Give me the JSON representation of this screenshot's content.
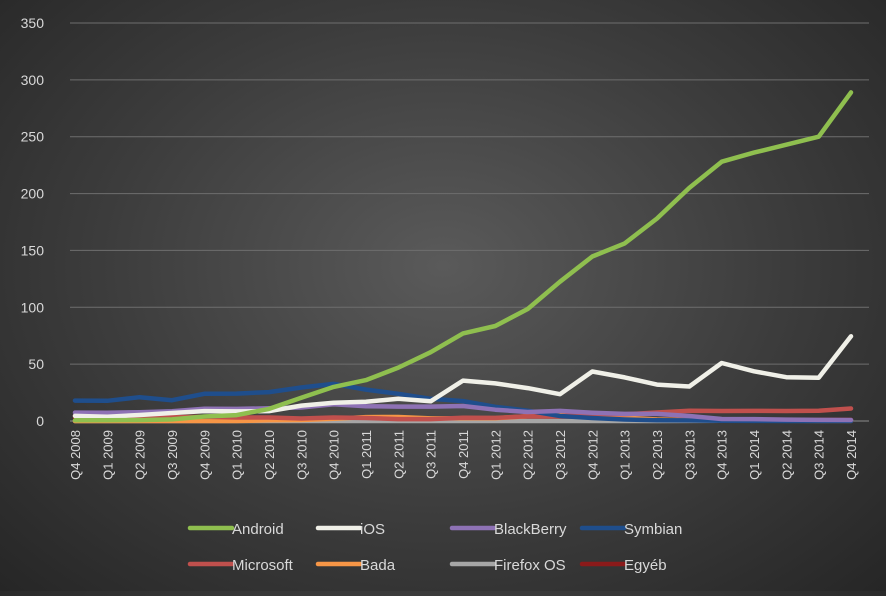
{
  "chart_data": {
    "type": "line",
    "title": "",
    "xlabel": "",
    "ylabel": "",
    "ylim": [
      0,
      350
    ],
    "yticks": [
      0,
      50,
      100,
      150,
      200,
      250,
      300,
      350
    ],
    "grid": true,
    "legend_position": "bottom",
    "x": [
      "Q4 2008",
      "Q1 2009",
      "Q2 2009",
      "Q3 2009",
      "Q4 2009",
      "Q1 2010",
      "Q2 2010",
      "Q3 2010",
      "Q4 2010",
      "Q1 2011",
      "Q2 2011",
      "Q3 2011",
      "Q4 2011",
      "Q1 2012",
      "Q2 2012",
      "Q3 2012",
      "Q4 2012",
      "Q1 2013",
      "Q2 2013",
      "Q3 2013",
      "Q4 2013",
      "Q1 2014",
      "Q2 2014",
      "Q3 2014",
      "Q4 2014"
    ],
    "series": [
      {
        "name": "Android",
        "color": "#8fbf4f",
        "values": [
          0.6,
          0.6,
          0.8,
          1.4,
          4.0,
          5.2,
          10.6,
          20.5,
          30.0,
          36.0,
          47.0,
          60.5,
          77.0,
          83.5,
          98.5,
          122.5,
          144.7,
          156.2,
          178.1,
          205.0,
          228.0,
          236.0,
          243.0,
          250.0,
          289.0
        ]
      },
      {
        "name": "iOS",
        "color": "#f0f0e8",
        "values": [
          4.5,
          3.8,
          5.3,
          7.0,
          8.7,
          8.4,
          8.7,
          13.5,
          16.0,
          16.9,
          19.6,
          17.3,
          35.5,
          33.1,
          28.9,
          23.6,
          43.5,
          38.3,
          32.0,
          30.3,
          51.0,
          43.7,
          38.5,
          38.0,
          74.5
        ]
      },
      {
        "name": "BlackBerry",
        "color": "#8e72b5",
        "values": [
          7.4,
          7.2,
          7.7,
          8.5,
          10.7,
          10.6,
          11.2,
          11.9,
          14.8,
          13.0,
          12.7,
          12.7,
          13.2,
          9.9,
          7.9,
          8.9,
          7.3,
          6.2,
          6.2,
          4.4,
          1.8,
          1.7,
          1.2,
          1.0,
          0.9
        ]
      },
      {
        "name": "Symbian",
        "color": "#1f4e8c",
        "values": [
          17.9,
          17.8,
          20.9,
          18.3,
          23.9,
          24.1,
          25.4,
          29.5,
          32.6,
          27.6,
          23.9,
          19.5,
          17.5,
          12.5,
          9.1,
          4.4,
          2.6,
          1.3,
          0.6,
          0.5,
          0.3,
          0.1,
          0.0,
          0.0,
          0.0
        ]
      },
      {
        "name": "Microsoft",
        "color": "#c0504d",
        "values": [
          4.7,
          3.7,
          3.8,
          3.3,
          3.7,
          3.1,
          3.1,
          2.2,
          3.1,
          2.6,
          1.7,
          1.7,
          2.8,
          2.7,
          4.1,
          4.1,
          6.2,
          5.9,
          7.5,
          9.0,
          8.8,
          8.9,
          8.8,
          9.0,
          11.0
        ]
      },
      {
        "name": "Bada",
        "color": "#f79646",
        "values": [
          0,
          0,
          0,
          0,
          0,
          0,
          0.6,
          0.9,
          2.0,
          3.4,
          3.5,
          2.3,
          2.5,
          2.4,
          4.2,
          5.0,
          4.5,
          3.0,
          1.3,
          0.8,
          0.5,
          0.3,
          0.2,
          0.1,
          0.1
        ]
      },
      {
        "name": "Firefox OS",
        "color": "#a6a6a6",
        "values": [
          0,
          0,
          0,
          0,
          0,
          0,
          0,
          0,
          0,
          0,
          0,
          0,
          0,
          0,
          0,
          0,
          0,
          0,
          0,
          0.1,
          0.2,
          0.2,
          0.3,
          0.4,
          0.5
        ]
      },
      {
        "name": "Egyéb",
        "color": "#8b1a1a",
        "values": [
          3.0,
          2.5,
          2.2,
          2.0,
          1.8,
          1.6,
          1.4,
          1.2,
          1.0,
          1.0,
          1.0,
          1.0,
          1.0,
          1.0,
          1.0,
          1.0,
          1.0,
          1.0,
          1.0,
          1.0,
          1.0,
          1.0,
          1.0,
          1.0,
          1.0
        ]
      }
    ]
  }
}
